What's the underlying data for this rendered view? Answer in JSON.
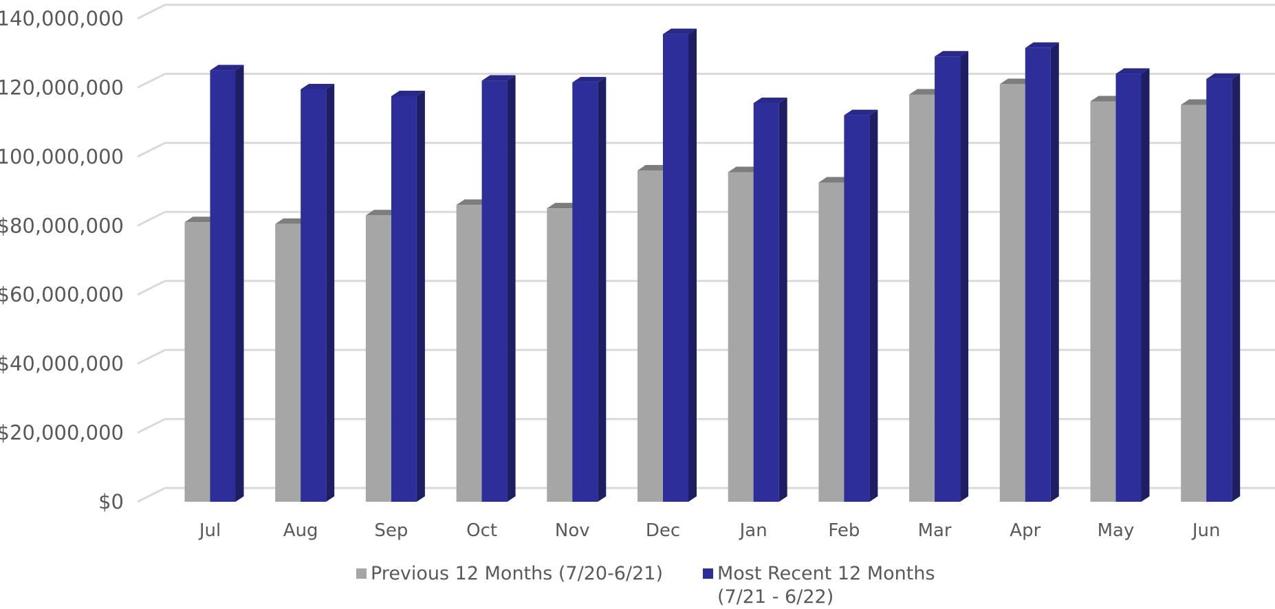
{
  "chart_data": {
    "type": "bar",
    "categories": [
      "Jul",
      "Aug",
      "Sep",
      "Oct",
      "Nov",
      "Dec",
      "Jan",
      "Feb",
      "Mar",
      "Apr",
      "May",
      "Jun"
    ],
    "series": [
      {
        "name": "Previous 12 Months (7/20-6/21)",
        "color": "#a6a6a6",
        "values": [
          81000000,
          80500000,
          83000000,
          86000000,
          85000000,
          96000000,
          95500000,
          92500000,
          118000000,
          121000000,
          116000000,
          115000000
        ]
      },
      {
        "name": "Most Recent 12 Months (7/21 - 6/22)",
        "color": "#2e2e9a",
        "values": [
          125000000,
          119500000,
          117500000,
          122000000,
          121500000,
          135500000,
          115500000,
          112000000,
          129000000,
          131500000,
          124000000,
          122500000
        ]
      }
    ],
    "y_ticks": [
      "$0",
      "$20,000,000",
      "$40,000,000",
      "$60,000,000",
      "$80,000,000",
      "$100,000,000",
      "$120,000,000",
      "$140,000,000"
    ],
    "ylim": [
      0,
      140000000
    ],
    "grid": true,
    "legend_position": "bottom",
    "style": "3d-clustered-column"
  }
}
